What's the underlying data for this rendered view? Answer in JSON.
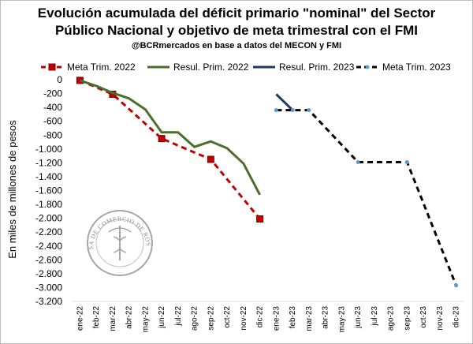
{
  "chart_data": {
    "type": "line",
    "title": "Evolución acumulada del déficit primario \"nominal\" del Sector",
    "title_line2": "Público Nacional y objetivo de meta trimestral con el FMI",
    "subtitle": "@BCRmercados en base a datos del MECON y FMI",
    "ylabel": "En miles de millones de pesos",
    "ylim": [
      -3200,
      0
    ],
    "yticks": [
      0,
      -200,
      -400,
      -600,
      -800,
      -1000,
      -1200,
      -1400,
      -1600,
      -1800,
      -2000,
      -2200,
      -2400,
      -2600,
      -2800,
      -3000,
      -3200
    ],
    "ytick_labels": [
      "0",
      "-200",
      "-400",
      "-600",
      "-800",
      "-1.000",
      "-1.200",
      "-1.400",
      "-1.600",
      "-1.800",
      "-2.000",
      "-2.200",
      "-2.400",
      "-2.600",
      "-2.800",
      "-3.000",
      "-3.200"
    ],
    "categories": [
      "ene-22",
      "feb-22",
      "mar-22",
      "abr-22",
      "may-22",
      "jun-22",
      "jul-22",
      "ago-22",
      "sep-22",
      "oct-22",
      "nov-22",
      "dic-22",
      "ene-23",
      "feb-23",
      "mar-23",
      "abr-23",
      "may-23",
      "jun-23",
      "jul-23",
      "ago-23",
      "sep-23",
      "oct-23",
      "nov-23",
      "dic-23"
    ],
    "grid": false,
    "legend_position": "top",
    "series": [
      {
        "name": "Meta Trim. 2022",
        "color": "#c00000",
        "style": "dashed",
        "values": [
          -10,
          null,
          -210,
          null,
          null,
          -850,
          null,
          null,
          -1150,
          null,
          null,
          -2010,
          null,
          null,
          null,
          null,
          null,
          null,
          null,
          null,
          null,
          null,
          null,
          null
        ],
        "markers_at": [
          0,
          2,
          5,
          8,
          11
        ],
        "marker": "square"
      },
      {
        "name": "Resul. Prim. 2022",
        "color": "#4a6f2a",
        "style": "solid",
        "values": [
          -10,
          -90,
          -190,
          -270,
          -430,
          -760,
          -760,
          -970,
          -890,
          -990,
          -1210,
          -1660,
          null,
          null,
          null,
          null,
          null,
          null,
          null,
          null,
          null,
          null,
          null,
          null
        ]
      },
      {
        "name": "Resul. Prim. 2023",
        "color": "#1f3864",
        "style": "solid",
        "values": [
          null,
          null,
          null,
          null,
          null,
          null,
          null,
          null,
          null,
          null,
          null,
          null,
          -210,
          -440,
          null,
          null,
          null,
          null,
          null,
          null,
          null,
          null,
          null,
          null
        ]
      },
      {
        "name": "Meta Trim. 2023",
        "color": "#000000",
        "style": "dashed",
        "values": [
          null,
          null,
          null,
          null,
          null,
          null,
          null,
          null,
          null,
          null,
          null,
          null,
          -440,
          -440,
          -440,
          null,
          null,
          -1190,
          -1190,
          -1190,
          -1190,
          null,
          null,
          -2970
        ],
        "markers_at": [
          12,
          13,
          14,
          17,
          20,
          23
        ],
        "marker": "dot",
        "marker_color": "#5b9bd5"
      }
    ],
    "watermark": "BOLSA DE COMERCIO DE ROSARIO"
  }
}
